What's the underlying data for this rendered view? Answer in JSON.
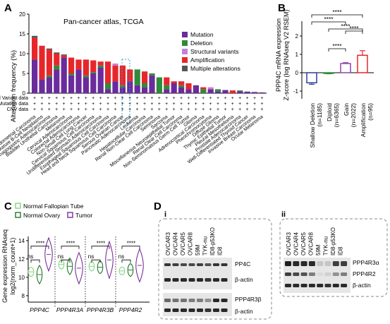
{
  "panels": {
    "a": {
      "letter": "A",
      "title": "Pan-cancer atlas, TCGA",
      "ylabel": "Alteration frequency (%)",
      "yticks": [
        "0",
        "5",
        "10",
        "15",
        "20"
      ],
      "row_labels": [
        "Structural Variant data",
        "Mutation data",
        "CNV data"
      ],
      "legend": [
        {
          "label": "Mutation",
          "color": "#6a2b9c"
        },
        {
          "label": "Deletion",
          "color": "#2e8b3a"
        },
        {
          "label": "Structural variants",
          "color": "#c77fd6"
        },
        {
          "label": "Amplification",
          "color": "#e8262a"
        },
        {
          "label": "Multiple alterations",
          "color": "#555555"
        }
      ],
      "cancers": [
        "Endometrial Carcinoma",
        "Mature B-Cell Neoplasms",
        "Esophagogastric Adenocarcinoma",
        "Bladder Urothelial Carcinoma",
        "Melanoma",
        "Cervical Adenocarcinoma",
        "Colorectal Adenocarcinoma",
        "Non-Small Cell Lung Cancer",
        "Cervical Squamous Cell Carcinoma",
        "Undifferentiated Stomach Adenocarcinoma",
        "Esophageal Squamous Cell Carcinoma",
        "Head and Neck Squamous Cell Carcinoma",
        "Serous Ovarian Cancer",
        "Pancreatic Adenocarcinoma",
        "Leukemia",
        "Hepatocellular Carcinoma",
        "Renal Non-Clear Cell Carcinoma",
        "Seminoma",
        "Sarcoma",
        "Miscellaneous Neuroepithelial Tumor",
        "Renal Clear Cell Carcinoma",
        "Non-Seminomatous Germ Cell Tumor",
        "Glioma",
        "Adrenocortical Carcinoma",
        "Pheochromocytoma",
        "Diffuse Glioma",
        "Thymic Epithelial Tumor",
        "Pleural Mesothelioma",
        "Prostate Adenocarcinoma",
        "Well-Differentiated Thyroid Cancer",
        "Invasive Breast Carcinoma",
        "Ocular Melanoma"
      ],
      "signs": "+"
    },
    "b": {
      "letter": "B",
      "ylabel_line1": "PPP4C mRNA expression",
      "ylabel_line2": "Z-score (log RNAseq V2 RSEM)",
      "yticks": [
        "-1",
        "0",
        "1",
        "2"
      ],
      "sig": [
        "****",
        "****",
        "****",
        "****",
        "****"
      ],
      "groups": [
        {
          "label": "Shallow Deletion",
          "n": "(n=1185)",
          "color": "#2c3e9c"
        },
        {
          "label": "Diploid",
          "n": "(n=6365)",
          "color": "#2e8b3a"
        },
        {
          "label": "Gain",
          "n": "(n=2022)",
          "color": "#8e44ad"
        },
        {
          "label": "Amplification",
          "n": "(n=95)",
          "color": "#e8262a"
        }
      ]
    },
    "c": {
      "letter": "C",
      "legend": [
        {
          "label": "Normal Fallopian Tube",
          "color": "#7fd67f"
        },
        {
          "label": "Normal Ovary",
          "color": "#1f7a2a"
        },
        {
          "label": "Tumor",
          "color": "#7b2d9c"
        }
      ],
      "ylabel_line1": "Gene expression RNAseq",
      "ylabel_line2": "log2(norm_count+1)",
      "yticks": [
        "8",
        "10",
        "12",
        "14"
      ],
      "genes": [
        "PPP4C",
        "PPP4R3A",
        "PPP4R3B",
        "PPP4R2"
      ],
      "ns": "ns",
      "sig": "****"
    },
    "d": {
      "letter": "D",
      "sub_i": "i",
      "sub_ii": "ii",
      "lanes": [
        "OVCAR3",
        "OVCAR4",
        "OVCAR5",
        "OVCAR8",
        "59M",
        "TYK-nu",
        "ID8-p53KO",
        "ID8"
      ],
      "blot_i_top": [
        "PP4C",
        "β-actin"
      ],
      "blot_i_bottom": [
        "PPP4R3β",
        "β-actin"
      ],
      "blot_ii": [
        "PPP4R3α",
        "PPP4R2",
        "β-actin"
      ]
    }
  }
}
